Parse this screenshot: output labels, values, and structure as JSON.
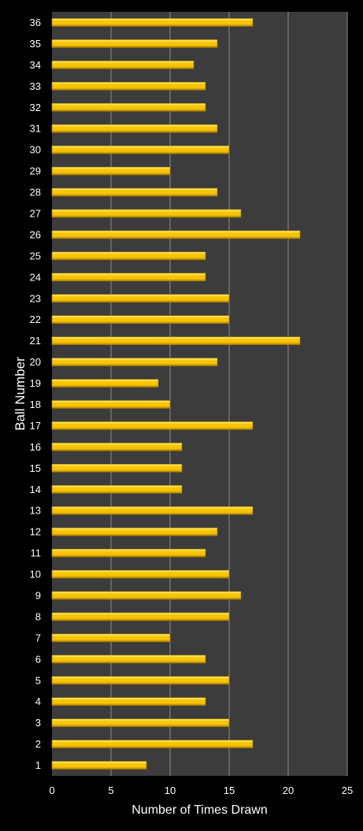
{
  "chart_data": {
    "type": "bar",
    "orientation": "horizontal",
    "title": "",
    "xlabel": "Number of Times Drawn",
    "ylabel": "Ball Number",
    "xlim": [
      0,
      25
    ],
    "xticks": [
      "0",
      "5",
      "10",
      "15",
      "20",
      "25"
    ],
    "categories": [
      "1",
      "2",
      "3",
      "4",
      "5",
      "6",
      "7",
      "8",
      "9",
      "10",
      "11",
      "12",
      "13",
      "14",
      "15",
      "16",
      "17",
      "18",
      "19",
      "20",
      "21",
      "22",
      "23",
      "24",
      "25",
      "26",
      "27",
      "28",
      "29",
      "30",
      "31",
      "32",
      "33",
      "34",
      "35",
      "36"
    ],
    "values": [
      8,
      17,
      15,
      13,
      15,
      13,
      10,
      15,
      16,
      15,
      13,
      14,
      17,
      11,
      11,
      11,
      17,
      10,
      9,
      14,
      21,
      15,
      15,
      13,
      13,
      21,
      16,
      14,
      10,
      15,
      14,
      13,
      13,
      12,
      14,
      17
    ],
    "grid": "vertical",
    "legend": "none",
    "colors": {
      "background": "#000000",
      "plot_area": "#3c3c3c",
      "gridline": "#8c8c8c",
      "bar_light": "#fff27a",
      "bar_mid": "#f6c400",
      "bar_dark": "#a87a00",
      "text": "#ffffff"
    }
  }
}
